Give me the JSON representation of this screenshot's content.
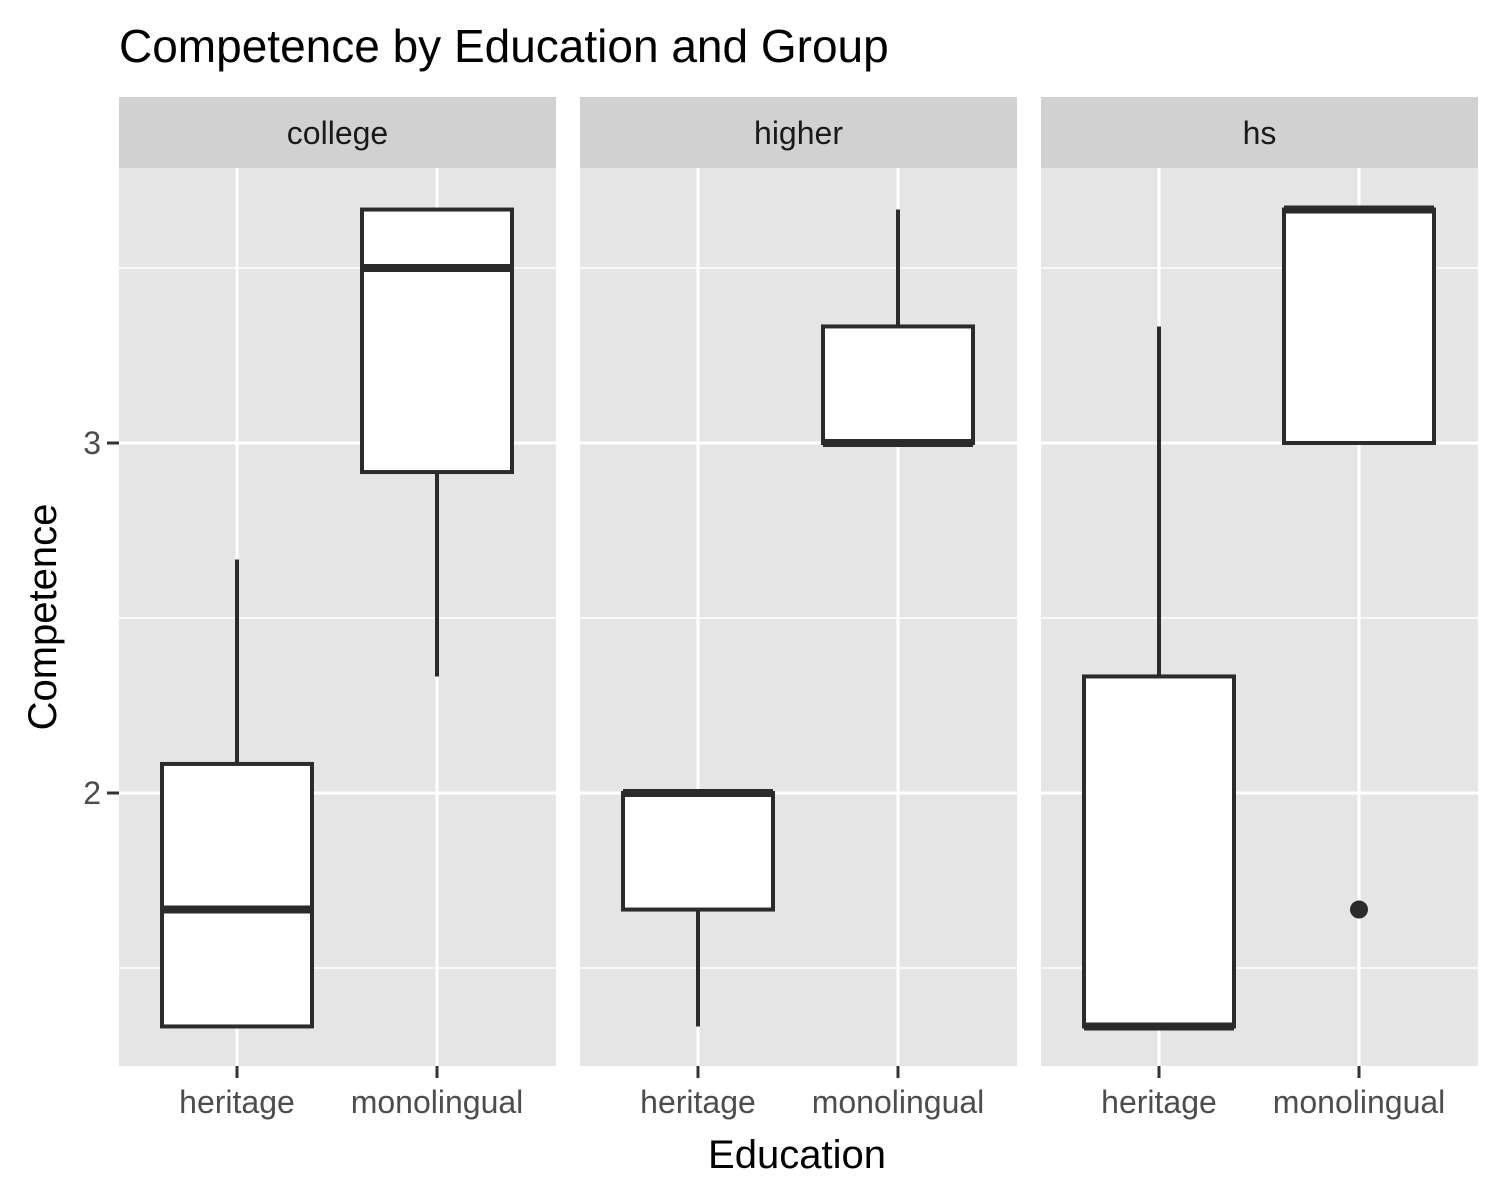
{
  "chart_data": {
    "type": "boxplot",
    "title": "Competence by Education and Group",
    "xlabel": "Education",
    "ylabel": "Competence",
    "ylim": [
      1.3,
      3.8
    ],
    "yticks": [
      2,
      3
    ],
    "categories": [
      "heritage",
      "monolingual"
    ],
    "facets": [
      {
        "label": "college",
        "boxes": [
          {
            "category": "heritage",
            "min": 1.333,
            "q1": 1.333,
            "median": 1.667,
            "q3": 2.083,
            "max": 2.667,
            "outliers": []
          },
          {
            "category": "monolingual",
            "min": 2.333,
            "q1": 2.917,
            "median": 3.5,
            "q3": 3.667,
            "max": 3.667,
            "outliers": []
          }
        ]
      },
      {
        "label": "higher",
        "boxes": [
          {
            "category": "heritage",
            "min": 1.333,
            "q1": 1.667,
            "median": 2.0,
            "q3": 2.0,
            "max": 2.0,
            "outliers": []
          },
          {
            "category": "monolingual",
            "min": 3.0,
            "q1": 3.0,
            "median": 3.0,
            "q3": 3.333,
            "max": 3.667,
            "outliers": []
          }
        ]
      },
      {
        "label": "hs",
        "boxes": [
          {
            "category": "heritage",
            "min": 1.333,
            "q1": 1.333,
            "median": 1.333,
            "q3": 2.333,
            "max": 3.333,
            "outliers": []
          },
          {
            "category": "monolingual",
            "min": 3.0,
            "q1": 3.0,
            "median": 3.667,
            "q3": 3.667,
            "max": 3.667,
            "outliers": [
              1.667
            ]
          }
        ]
      }
    ],
    "grid": true,
    "colors": {
      "panel_bg": "#e5e5e5",
      "strip_bg": "#d1d1d1",
      "grid": "#ffffff",
      "box_fill": "#ffffff",
      "box_stroke": "#2b2b2b"
    }
  }
}
